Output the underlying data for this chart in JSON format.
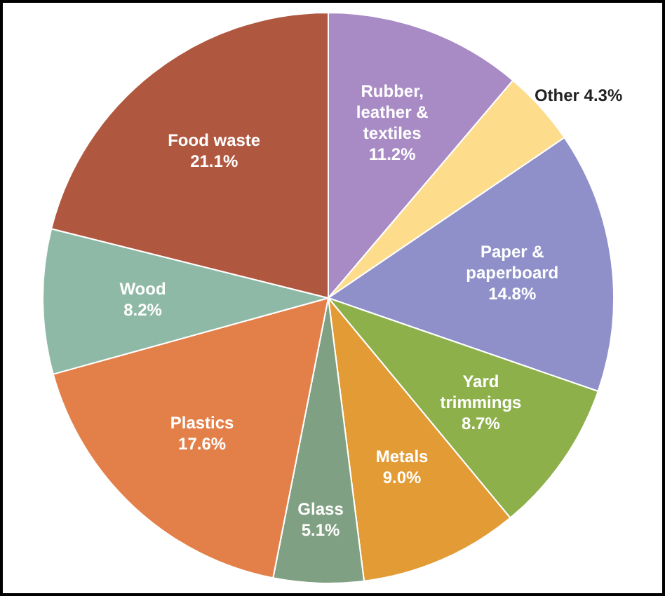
{
  "chart_data": {
    "type": "pie",
    "categories": [
      "Rubber, leather & textiles",
      "Other",
      "Paper & paperboard",
      "Yard trimmings",
      "Metals",
      "Glass",
      "Plastics",
      "Wood",
      "Food waste"
    ],
    "values": [
      11.2,
      4.3,
      14.8,
      8.7,
      9.0,
      5.1,
      17.6,
      8.2,
      21.1
    ],
    "value_labels": [
      "11.2%",
      "4.3%",
      "14.8%",
      "8.7%",
      "9.0%",
      "5.1%",
      "17.6%",
      "8.2%",
      "21.1%"
    ],
    "colors": [
      "#a88bc5",
      "#fddc8c",
      "#8f90c9",
      "#8db04b",
      "#e39b35",
      "#80a083",
      "#e3804a",
      "#8fb9a7",
      "#b0583f"
    ],
    "legend": false
  }
}
